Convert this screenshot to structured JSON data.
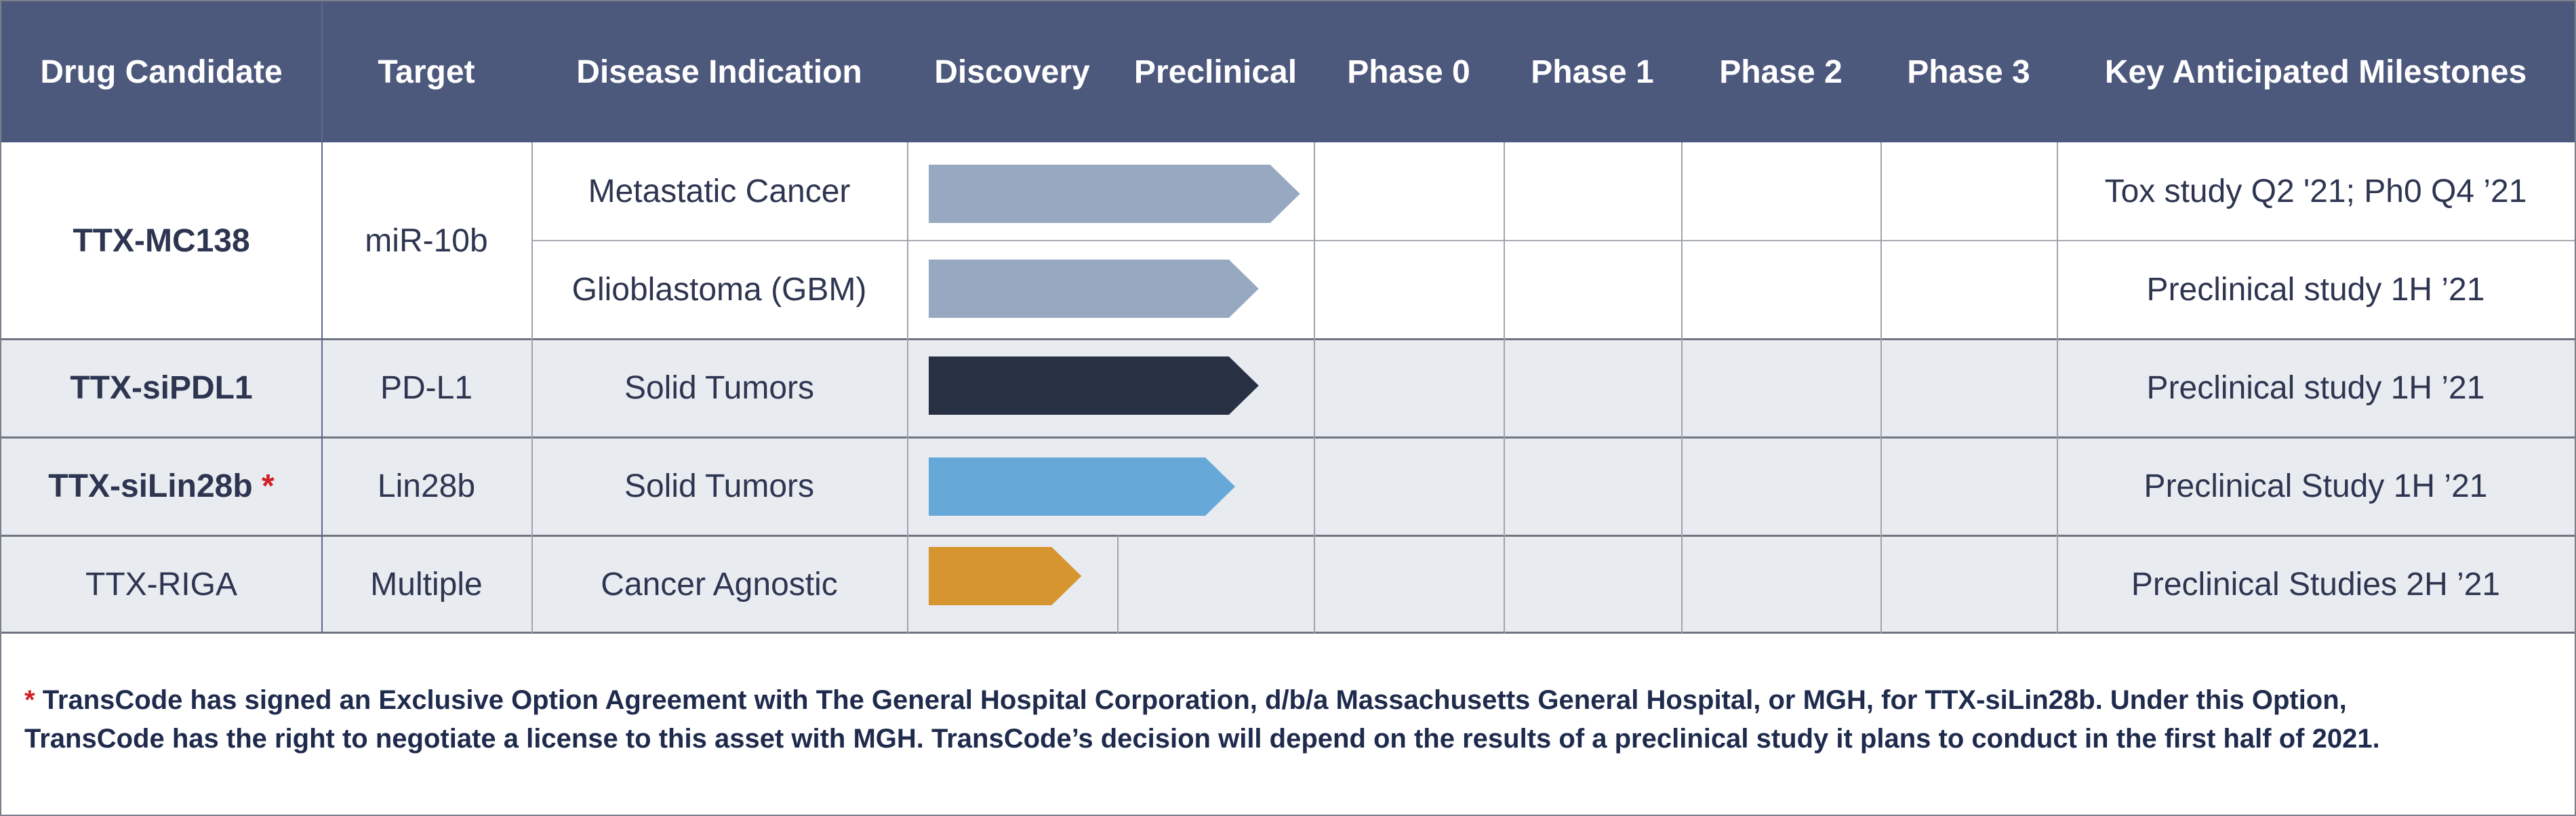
{
  "header": {
    "drug_candidate": "Drug Candidate",
    "target": "Target",
    "disease_indication": "Disease Indication",
    "discovery": "Discovery",
    "preclinical": "Preclinical",
    "phase0": "Phase 0",
    "phase1": "Phase 1",
    "phase2": "Phase 2",
    "phase3": "Phase 3",
    "milestones": "Key Anticipated Milestones"
  },
  "rows": [
    {
      "drug": "TTX-MC138",
      "target": "miR-10b",
      "indication": "Metastatic Cancer",
      "milestone": "Tox study Q2 '21; Ph0 Q4 ’21",
      "progress_stage": "Preclinical",
      "progress_fraction": 0.93,
      "bar_color": "#97a9c1"
    },
    {
      "drug": "TTX-MC138",
      "target": "miR-10b",
      "indication": "Glioblastoma (GBM)",
      "milestone": "Preclinical study 1H ’21",
      "progress_stage": "Preclinical",
      "progress_fraction": 0.72,
      "bar_color": "#97a9c1"
    },
    {
      "drug": "TTX-siPDL1",
      "target": "PD-L1",
      "indication": "Solid Tumors",
      "milestone": "Preclinical study 1H ’21",
      "progress_stage": "Preclinical",
      "progress_fraction": 0.72,
      "bar_color": "#283044"
    },
    {
      "drug": "TTX-siLin28b",
      "drug_marker": "*",
      "target": "Lin28b",
      "indication": "Solid Tumors",
      "milestone": "Preclinical Study 1H ’21",
      "progress_stage": "Preclinical",
      "progress_fraction": 0.6,
      "bar_color": "#66a9d9"
    },
    {
      "drug": "TTX-RIGA",
      "target": "Multiple",
      "indication": "Cancer Agnostic",
      "milestone": "Preclinical Studies 2H ’21",
      "progress_stage": "Discovery",
      "progress_fraction": 0.83,
      "bar_color": "#d7952f"
    }
  ],
  "footnote": {
    "marker": "*",
    "line1": "TransCode  has signed an Exclusive Option Agreement with The General Hospital  Corporation,  d/b/a  Massachusetts  General Hospital,  or MGH,  for TTX-siLin28b. Under this Option,",
    "line2": "TransCode  has the right to negotiate a license to this asset with MGH.  TransCode’s  decision will depend on the results of a  preclinical study it plans to conduct in the first half of 2021."
  }
}
